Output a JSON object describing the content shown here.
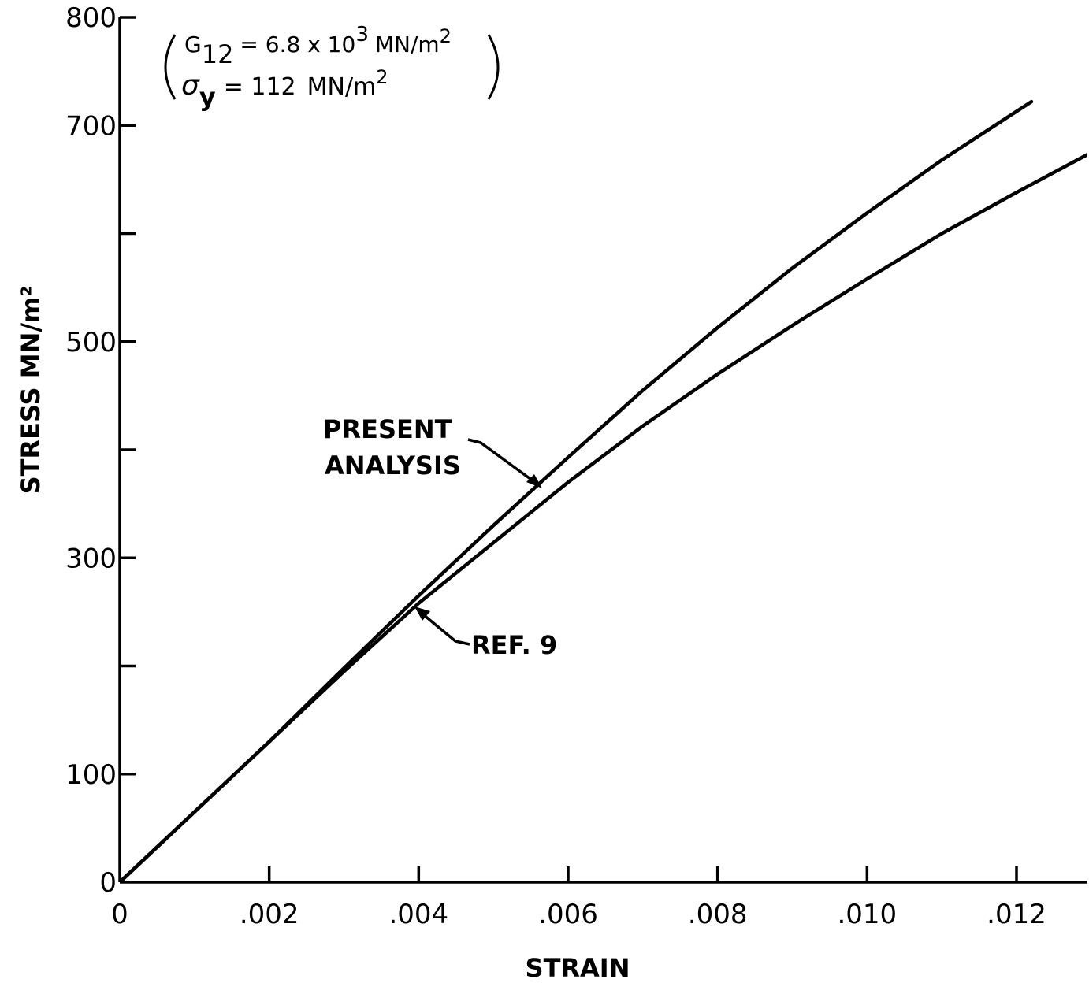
{
  "chart_data": {
    "type": "line",
    "xlabel": "STRAIN",
    "ylabel": "STRESS MN/m²",
    "xlim": [
      0,
      0.013
    ],
    "ylim": [
      0,
      800
    ],
    "x_ticks": [
      0,
      0.002,
      0.004,
      0.006,
      0.008,
      0.01,
      0.012
    ],
    "x_tick_labels": [
      "0",
      ".002",
      ".004",
      ".006",
      ".008",
      ".010",
      ".012"
    ],
    "y_ticks": [
      0,
      100,
      200,
      300,
      400,
      500,
      600,
      700,
      800
    ],
    "y_tick_labels": [
      "0",
      "100",
      "",
      "300",
      "",
      "500",
      "",
      "700",
      "800"
    ],
    "grid": false,
    "series": [
      {
        "name": "PRESENT ANALYSIS",
        "x": [
          0,
          0.002,
          0.003,
          0.004,
          0.005,
          0.006,
          0.007,
          0.008,
          0.009,
          0.01,
          0.011,
          0.0122
        ],
        "y": [
          0,
          130,
          198,
          265,
          330,
          393,
          455,
          513,
          568,
          619,
          668,
          722
        ]
      },
      {
        "name": "REF. 9",
        "x": [
          0,
          0.002,
          0.003,
          0.004,
          0.005,
          0.006,
          0.007,
          0.008,
          0.009,
          0.01,
          0.011,
          0.012,
          0.013
        ],
        "y": [
          0,
          130,
          195,
          258,
          314,
          370,
          422,
          470,
          515,
          558,
          600,
          638,
          675
        ]
      }
    ],
    "annotations": [
      {
        "lines": [
          "PRESENT",
          "ANALYSIS"
        ],
        "target_series": "PRESENT ANALYSIS"
      },
      {
        "lines": [
          "REF. 9"
        ],
        "target_series": "REF. 9"
      }
    ],
    "parameters": {
      "g12_symbol": "G",
      "g12_subscript": "12",
      "g12_value": "= 6.8 x 10",
      "g12_exponent": "3",
      "g12_unit": "MN/m",
      "g12_unit_exp": "2",
      "sy_symbol": "σ",
      "sy_subscript": "y",
      "sy_value": "= 112",
      "sy_unit": "MN/m",
      "sy_unit_exp": "2"
    }
  }
}
